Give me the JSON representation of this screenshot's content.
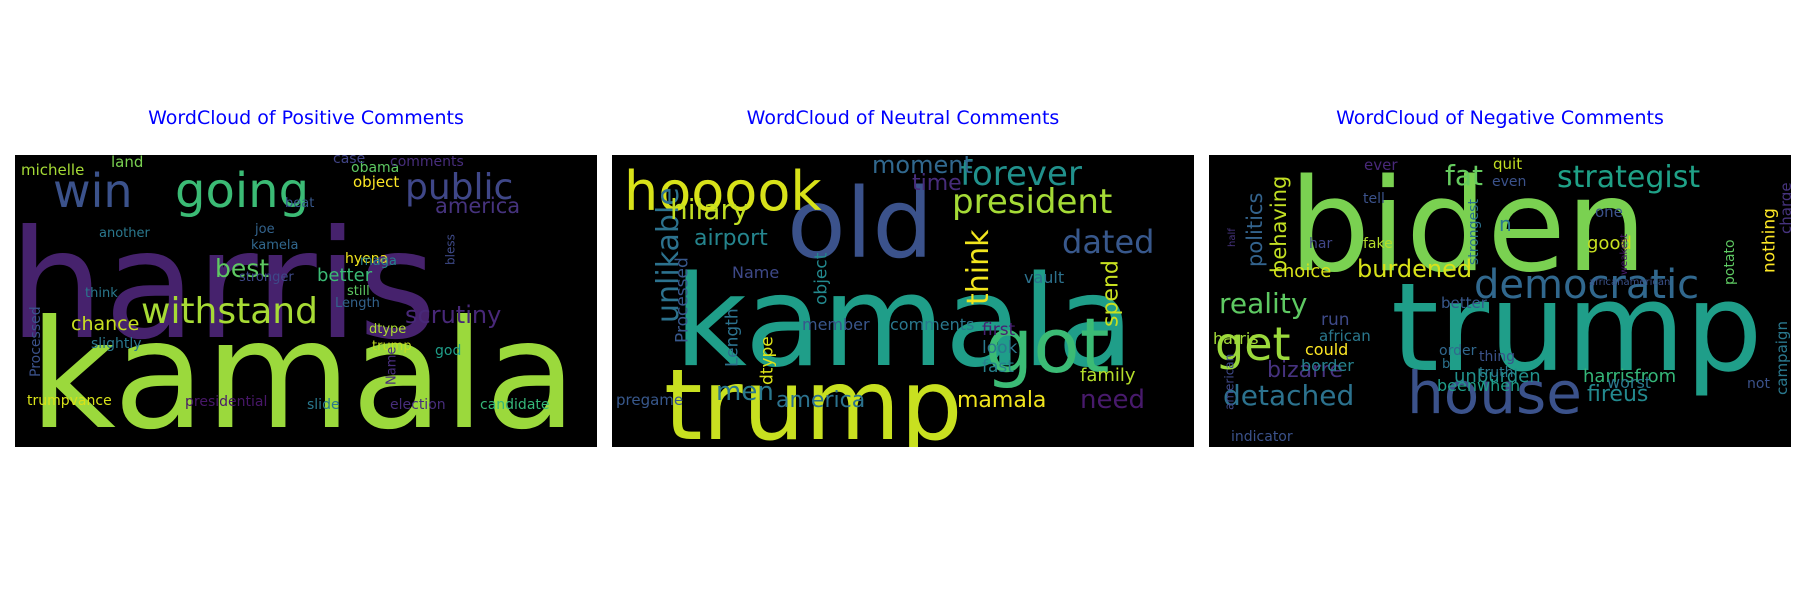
{
  "chart_data": [
    {
      "type": "wordcloud",
      "title": "WordCloud of Positive Comments",
      "background": "#000000",
      "colormap": "viridis",
      "words": [
        {
          "text": "harris",
          "weight": 100,
          "color": "#46226d"
        },
        {
          "text": "kamala",
          "weight": 95,
          "color": "#9bd93c"
        },
        {
          "text": "going",
          "weight": 36,
          "color": "#3bbb75"
        },
        {
          "text": "win",
          "weight": 30,
          "color": "#3b528b"
        },
        {
          "text": "withstand",
          "weight": 28,
          "color": "#a7db35"
        },
        {
          "text": "public",
          "weight": 26,
          "color": "#3f4788"
        },
        {
          "text": "scrutiny",
          "weight": 18,
          "color": "#482878"
        },
        {
          "text": "america",
          "weight": 18,
          "color": "#46337e"
        },
        {
          "text": "best",
          "weight": 18,
          "color": "#5ec962"
        },
        {
          "text": "chance",
          "weight": 14,
          "color": "#c8e020"
        },
        {
          "text": "better",
          "weight": 13,
          "color": "#3bbb75"
        },
        {
          "text": "hyena",
          "weight": 11,
          "color": "#f1e51d"
        },
        {
          "text": "object",
          "weight": 11,
          "color": "#fde725"
        },
        {
          "text": "obama",
          "weight": 11,
          "color": "#5ec962"
        },
        {
          "text": "comments",
          "weight": 11,
          "color": "#472d7b"
        },
        {
          "text": "case",
          "weight": 11,
          "color": "#414487"
        },
        {
          "text": "land",
          "weight": 11,
          "color": "#7ad151"
        },
        {
          "text": "michelle",
          "weight": 11,
          "color": "#a5db36"
        },
        {
          "text": "another",
          "weight": 10,
          "color": "#2a788e"
        },
        {
          "text": "beat",
          "weight": 10,
          "color": "#38588c"
        },
        {
          "text": "joe",
          "weight": 10,
          "color": "#33638d"
        },
        {
          "text": "kamela",
          "weight": 10,
          "color": "#31688e"
        },
        {
          "text": "maga",
          "weight": 10,
          "color": "#26828e"
        },
        {
          "text": "still",
          "weight": 10,
          "color": "#5ec962"
        },
        {
          "text": "stronger",
          "weight": 10,
          "color": "#3e4989"
        },
        {
          "text": "Length",
          "weight": 10,
          "color": "#33638d"
        },
        {
          "text": "think",
          "weight": 10,
          "color": "#2a788e"
        },
        {
          "text": "dtype",
          "weight": 10,
          "color": "#addc30"
        },
        {
          "text": "trump",
          "weight": 10,
          "color": "#c2df23"
        },
        {
          "text": "slightly",
          "weight": 10,
          "color": "#2a788e"
        },
        {
          "text": "god",
          "weight": 10,
          "color": "#1f9e89"
        },
        {
          "text": "Processed",
          "weight": 10,
          "color": "#3b528b"
        },
        {
          "text": "Name",
          "weight": 10,
          "color": "#472d7b"
        },
        {
          "text": "bless",
          "weight": 10,
          "color": "#3e4a89"
        },
        {
          "text": "trumpvance",
          "weight": 10,
          "color": "#d8e219"
        },
        {
          "text": "presidential",
          "weight": 10,
          "color": "#481769"
        },
        {
          "text": "slide",
          "weight": 10,
          "color": "#2a788e"
        },
        {
          "text": "election",
          "weight": 10,
          "color": "#472d7b"
        },
        {
          "text": "candidate",
          "weight": 10,
          "color": "#35b779"
        }
      ]
    },
    {
      "type": "wordcloud",
      "title": "WordCloud of Neutral Comments",
      "background": "#000000",
      "colormap": "viridis",
      "words": [
        {
          "text": "kamala",
          "weight": 100,
          "color": "#1f9e89"
        },
        {
          "text": "trump",
          "weight": 72,
          "color": "#c8e020"
        },
        {
          "text": "old",
          "weight": 70,
          "color": "#3b528b"
        },
        {
          "text": "got",
          "weight": 52,
          "color": "#3bbb75"
        },
        {
          "text": "hooook",
          "weight": 42,
          "color": "#d8e219"
        },
        {
          "text": "president",
          "weight": 30,
          "color": "#a5db36"
        },
        {
          "text": "forever",
          "weight": 30,
          "color": "#21918c"
        },
        {
          "text": "unlikable",
          "weight": 27,
          "color": "#2c728e"
        },
        {
          "text": "hilary",
          "weight": 26,
          "color": "#c2df23"
        },
        {
          "text": "think",
          "weight": 26,
          "color": "#f1e51d"
        },
        {
          "text": "dated",
          "weight": 26,
          "color": "#38588c"
        },
        {
          "text": "men",
          "weight": 20,
          "color": "#2a788e"
        },
        {
          "text": "need",
          "weight": 20,
          "color": "#481a6c"
        },
        {
          "text": "moment",
          "weight": 18,
          "color": "#31688e"
        },
        {
          "text": "airport",
          "weight": 18,
          "color": "#25858e"
        },
        {
          "text": "america",
          "weight": 18,
          "color": "#2c728e"
        },
        {
          "text": "spend",
          "weight": 18,
          "color": "#c8e020"
        },
        {
          "text": "mamala",
          "weight": 18,
          "color": "#f1e51d"
        },
        {
          "text": "time",
          "weight": 16,
          "color": "#472c7a"
        },
        {
          "text": "family",
          "weight": 16,
          "color": "#b5de2b"
        },
        {
          "text": "Processed",
          "weight": 14,
          "color": "#38588c"
        },
        {
          "text": "Length",
          "weight": 14,
          "color": "#2c728e"
        },
        {
          "text": "dtype",
          "weight": 14,
          "color": "#dde318"
        },
        {
          "text": "object",
          "weight": 14,
          "color": "#23898e"
        },
        {
          "text": "Name",
          "weight": 14,
          "color": "#3e4989"
        },
        {
          "text": "vault",
          "weight": 14,
          "color": "#2c728e"
        },
        {
          "text": "first",
          "weight": 14,
          "color": "#482173"
        },
        {
          "text": "look",
          "weight": 14,
          "color": "#2a788e"
        },
        {
          "text": "fast",
          "weight": 14,
          "color": "#26828e"
        },
        {
          "text": "member",
          "weight": 13,
          "color": "#39568c"
        },
        {
          "text": "comments",
          "weight": 13,
          "color": "#2a788e"
        },
        {
          "text": "pregame",
          "weight": 13,
          "color": "#38588c"
        }
      ]
    },
    {
      "type": "wordcloud",
      "title": "WordCloud of Negative Comments",
      "background": "#000000",
      "colormap": "viridis",
      "words": [
        {
          "text": "biden",
          "weight": 100,
          "color": "#7ad151"
        },
        {
          "text": "trump",
          "weight": 95,
          "color": "#1f9e89"
        },
        {
          "text": "house",
          "weight": 48,
          "color": "#3b528b"
        },
        {
          "text": "democratic",
          "weight": 36,
          "color": "#31688e"
        },
        {
          "text": "strategist",
          "weight": 30,
          "color": "#1fa187"
        },
        {
          "text": "get",
          "weight": 28,
          "color": "#9bd93c"
        },
        {
          "text": "detached",
          "weight": 26,
          "color": "#2c728e"
        },
        {
          "text": "reality",
          "weight": 26,
          "color": "#5ec962"
        },
        {
          "text": "fat",
          "weight": 24,
          "color": "#65cb5e"
        },
        {
          "text": "burdened",
          "weight": 22,
          "color": "#d8e219"
        },
        {
          "text": "fireus",
          "weight": 20,
          "color": "#23898e"
        },
        {
          "text": "harrisfrom",
          "weight": 20,
          "color": "#35b779"
        },
        {
          "text": "politics",
          "weight": 20,
          "color": "#33638d"
        },
        {
          "text": "behaving",
          "weight": 20,
          "color": "#c2df23"
        },
        {
          "text": "bizarre",
          "weight": 20,
          "color": "#46327e"
        },
        {
          "text": "choice",
          "weight": 18,
          "color": "#d8e219"
        },
        {
          "text": "unburden",
          "weight": 18,
          "color": "#21918c"
        },
        {
          "text": "n",
          "weight": 18,
          "color": "#2a788e"
        },
        {
          "text": "good",
          "weight": 16,
          "color": "#c8e020"
        },
        {
          "text": "harris",
          "weight": 16,
          "color": "#a2da37"
        },
        {
          "text": "could",
          "weight": 16,
          "color": "#fde725"
        },
        {
          "text": "border",
          "weight": 16,
          "color": "#26828e"
        },
        {
          "text": "beenwhen",
          "weight": 16,
          "color": "#1f9e89"
        },
        {
          "text": "worst",
          "weight": 16,
          "color": "#2a788e"
        },
        {
          "text": "run",
          "weight": 15,
          "color": "#3e4a89"
        },
        {
          "text": "better",
          "weight": 15,
          "color": "#38588c"
        },
        {
          "text": "african",
          "weight": 14,
          "color": "#2a788e"
        },
        {
          "text": "nothing",
          "weight": 14,
          "color": "#fde725"
        },
        {
          "text": "charge",
          "weight": 14,
          "color": "#46337e"
        },
        {
          "text": "campaign",
          "weight": 14,
          "color": "#2a788e"
        },
        {
          "text": "potato",
          "weight": 14,
          "color": "#5ec962"
        },
        {
          "text": "strongest",
          "weight": 13,
          "color": "#2c728e"
        },
        {
          "text": "quit",
          "weight": 13,
          "color": "#c2df23"
        },
        {
          "text": "even",
          "weight": 13,
          "color": "#3b528b"
        },
        {
          "text": "ever",
          "weight": 13,
          "color": "#482878"
        },
        {
          "text": "tell",
          "weight": 13,
          "color": "#3b528b"
        },
        {
          "text": "fake",
          "weight": 13,
          "color": "#b5de2b"
        },
        {
          "text": "har",
          "weight": 13,
          "color": "#404688"
        },
        {
          "text": "one",
          "weight": 13,
          "color": "#3b528b"
        },
        {
          "text": "order",
          "weight": 13,
          "color": "#31688e"
        },
        {
          "text": "b",
          "weight": 13,
          "color": "#2c728e"
        },
        {
          "text": "thing",
          "weight": 13,
          "color": "#3b528b"
        },
        {
          "text": "truth",
          "weight": 13,
          "color": "#2a788e"
        },
        {
          "text": "not",
          "weight": 12,
          "color": "#3b528b"
        },
        {
          "text": "indicator",
          "weight": 12,
          "color": "#3b528b"
        },
        {
          "text": "american",
          "weight": 12,
          "color": "#3e4989"
        },
        {
          "text": "half",
          "weight": 10,
          "color": "#46337e"
        },
        {
          "text": "weakest",
          "weight": 10,
          "color": "#481a6c"
        },
        {
          "text": "africanamerican",
          "weight": 10,
          "color": "#3b528b"
        }
      ]
    }
  ]
}
